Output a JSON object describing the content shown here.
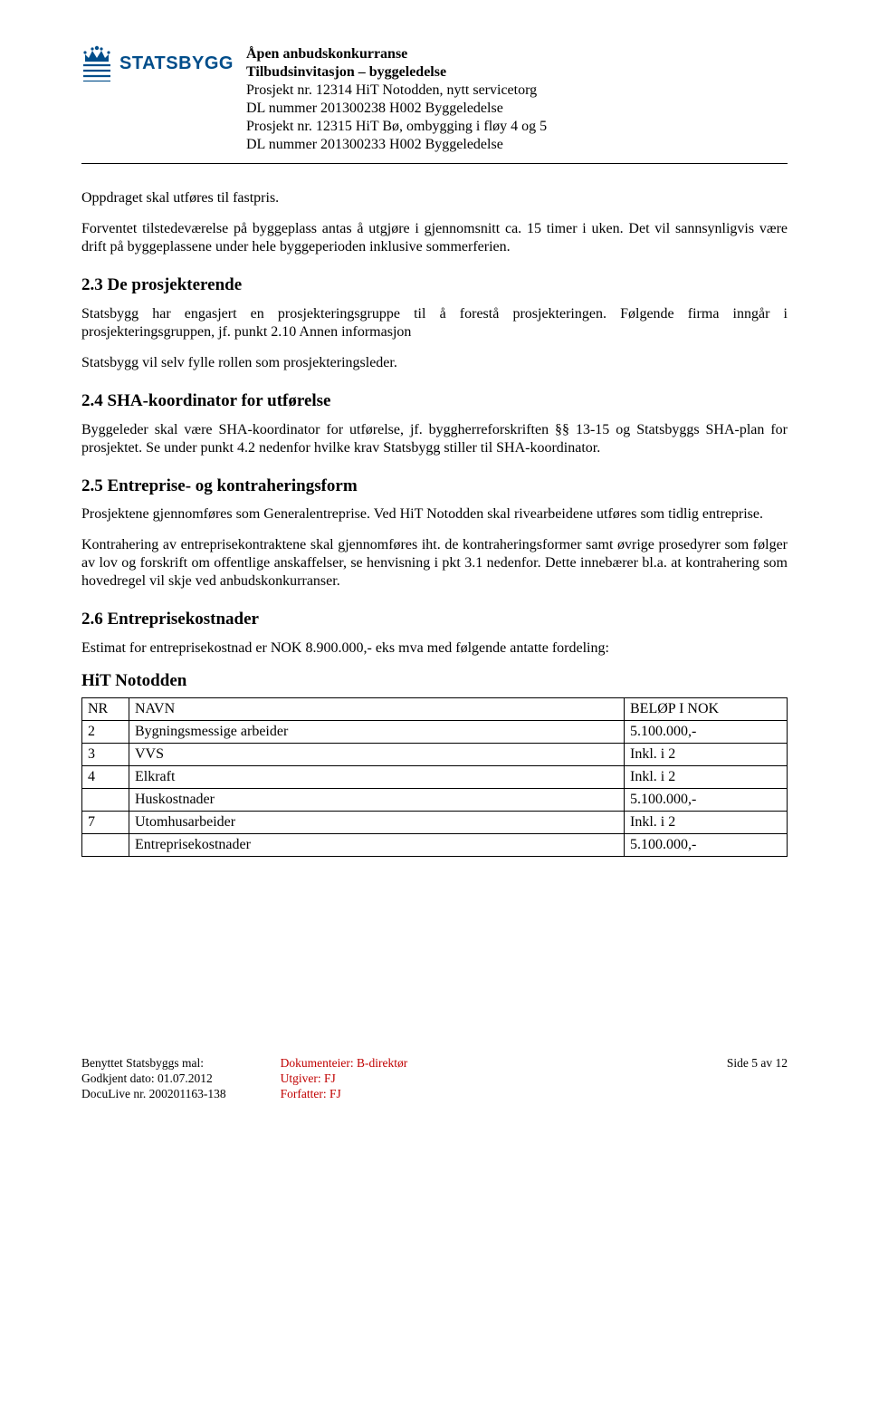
{
  "logo": {
    "name": "STATSBYGG",
    "color": "#004d8a"
  },
  "header": {
    "l1": "Åpen anbudskonkurranse",
    "l2": "Tilbudsinvitasjon – byggeledelse",
    "l3": "Prosjekt nr. 12314 HiT Notodden, nytt servicetorg",
    "l4": "DL nummer 201300238 H002 Byggeledelse",
    "l5": "Prosjekt nr. 12315 HiT Bø, ombygging i fløy 4 og 5",
    "l6": "DL nummer 201300233 H002 Byggeledelse"
  },
  "body": {
    "p1": "Oppdraget skal utføres til fastpris.",
    "p2": "Forventet tilstedeværelse på byggeplass antas å utgjøre i gjennomsnitt ca. 15 timer i uken. Det vil sannsynligvis være drift på byggeplassene under hele byggeperioden inklusive sommerferien.",
    "h23": "2.3 De prosjekterende",
    "p3": "Statsbygg har engasjert en prosjekteringsgruppe til å forestå prosjekteringen. Følgende firma inngår i prosjekteringsgruppen, jf. punkt 2.10 Annen informasjon",
    "p4": "Statsbygg vil selv fylle rollen som prosjekteringsleder.",
    "h24": "2.4 SHA-koordinator for utførelse",
    "p5": "Byggeleder skal være SHA-koordinator for utførelse, jf. byggherreforskriften §§ 13-15 og Statsbyggs SHA-plan for prosjektet. Se under punkt 4.2 nedenfor hvilke krav Statsbygg stiller til SHA-koordinator.",
    "h25": "2.5 Entreprise- og kontraheringsform",
    "p6": "Prosjektene gjennomføres som Generalentreprise. Ved HiT Notodden skal rivearbeidene utføres som tidlig entreprise.",
    "p7": "Kontrahering av entreprisekontraktene skal gjennomføres iht. de kontraheringsformer samt øvrige prosedyrer som følger av lov og forskrift om offentlige anskaffelser, se henvisning i pkt 3.1 nedenfor. Dette innebærer bl.a. at kontrahering som hovedregel vil skje ved anbudskonkurranser.",
    "h26": "2.6 Entreprisekostnader",
    "p8": "Estimat for entreprisekostnad er NOK 8.900.000,- eks mva med følgende antatte fordeling:",
    "table_title": "HiT Notodden"
  },
  "table": {
    "headers": {
      "nr": "NR",
      "navn": "NAVN",
      "belop": "BELØP I NOK"
    },
    "rows": [
      {
        "nr": "2",
        "navn": "Bygningsmessige arbeider",
        "belop": "5.100.000,-"
      },
      {
        "nr": "3",
        "navn": "VVS",
        "belop": "Inkl. i 2"
      },
      {
        "nr": "4",
        "navn": "Elkraft",
        "belop": "Inkl. i 2"
      },
      {
        "nr": "",
        "navn": "Huskostnader",
        "belop": "5.100.000,-"
      },
      {
        "nr": "7",
        "navn": "Utomhusarbeider",
        "belop": "Inkl. i 2"
      },
      {
        "nr": "",
        "navn": "Entreprisekostnader",
        "belop": "5.100.000,-"
      }
    ]
  },
  "footer": {
    "left": {
      "l1": "Benyttet Statsbyggs mal:",
      "l2": "Godkjent dato: 01.07.2012",
      "l3": "DocuLive nr. 200201163-138"
    },
    "mid": {
      "l1": "Dokumenteier: B-direktør",
      "l2": "Utgiver: FJ",
      "l3": "Forfatter: FJ"
    },
    "right": "Side 5 av 12"
  }
}
